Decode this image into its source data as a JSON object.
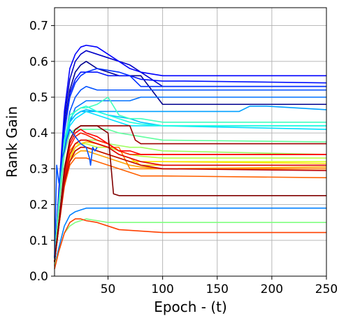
{
  "chart_data": {
    "type": "line",
    "title": "",
    "xlabel": "Epoch - (t)",
    "ylabel": "Rank Gain",
    "xlim": [
      1,
      250
    ],
    "ylim": [
      0.0,
      0.75
    ],
    "xticks": [
      50,
      100,
      150,
      200,
      250
    ],
    "yticks": [
      0.0,
      0.1,
      0.2,
      0.3,
      0.4,
      0.5,
      0.6,
      0.7
    ],
    "xtick_labels": [
      "50",
      "100",
      "150",
      "200",
      "250"
    ],
    "ytick_labels": [
      "0.0",
      "0.1",
      "0.2",
      "0.3",
      "0.4",
      "0.5",
      "0.6",
      "0.7"
    ],
    "grid": true,
    "legend": "none",
    "colormap": "jet",
    "series": [
      {
        "color": "#00008f",
        "x": [
          1,
          5,
          10,
          15,
          20,
          25,
          30,
          40,
          50,
          60,
          70,
          80,
          100,
          250
        ],
        "y": [
          0.05,
          0.22,
          0.42,
          0.52,
          0.57,
          0.59,
          0.6,
          0.58,
          0.57,
          0.56,
          0.56,
          0.56,
          0.48,
          0.48
        ]
      },
      {
        "color": "#0000c8",
        "x": [
          1,
          5,
          10,
          15,
          20,
          25,
          30,
          40,
          50,
          60,
          70,
          80,
          100,
          250
        ],
        "y": [
          0.05,
          0.23,
          0.44,
          0.55,
          0.6,
          0.62,
          0.63,
          0.62,
          0.61,
          0.6,
          0.59,
          0.57,
          0.53,
          0.53
        ]
      },
      {
        "color": "#0000ff",
        "x": [
          1,
          5,
          10,
          15,
          20,
          25,
          30,
          40,
          50,
          60,
          70,
          80,
          100,
          250
        ],
        "y": [
          0.05,
          0.24,
          0.46,
          0.58,
          0.62,
          0.64,
          0.645,
          0.64,
          0.62,
          0.6,
          0.58,
          0.57,
          0.56,
          0.56
        ]
      },
      {
        "color": "#0010ff",
        "x": [
          1,
          5,
          10,
          15,
          20,
          25,
          30,
          40,
          50,
          60,
          70,
          80,
          100,
          120,
          250
        ],
        "y": [
          0.05,
          0.22,
          0.41,
          0.51,
          0.55,
          0.57,
          0.57,
          0.57,
          0.56,
          0.56,
          0.56,
          0.55,
          0.545,
          0.545,
          0.54
        ]
      },
      {
        "color": "#0030ff",
        "x": [
          1,
          5,
          10,
          15,
          20,
          25,
          30,
          40,
          50,
          60,
          70,
          80,
          100,
          250
        ],
        "y": [
          0.05,
          0.21,
          0.4,
          0.5,
          0.54,
          0.56,
          0.57,
          0.58,
          0.575,
          0.57,
          0.56,
          0.53,
          0.53,
          0.53
        ]
      },
      {
        "color": "#0050ff",
        "x": [
          1,
          5,
          10,
          15,
          20,
          25,
          30,
          40,
          50,
          60,
          70,
          80,
          100,
          250
        ],
        "y": [
          0.05,
          0.2,
          0.37,
          0.46,
          0.5,
          0.52,
          0.53,
          0.52,
          0.52,
          0.52,
          0.52,
          0.52,
          0.52,
          0.52
        ]
      },
      {
        "color": "#0070ff",
        "x": [
          1,
          5,
          10,
          15,
          20,
          25,
          30,
          40,
          50,
          60,
          70,
          80,
          100,
          250
        ],
        "y": [
          0.05,
          0.19,
          0.35,
          0.43,
          0.47,
          0.48,
          0.49,
          0.49,
          0.49,
          0.49,
          0.49,
          0.5,
          0.5,
          0.5
        ]
      },
      {
        "color": "#0080ff",
        "x": [
          1,
          5,
          10,
          15,
          20,
          25,
          30,
          40,
          50,
          60,
          100,
          250
        ],
        "y": [
          0.03,
          0.08,
          0.14,
          0.17,
          0.18,
          0.185,
          0.19,
          0.19,
          0.19,
          0.19,
          0.19,
          0.19
        ]
      },
      {
        "color": "#00a0ff",
        "x": [
          1,
          5,
          10,
          15,
          20,
          25,
          30,
          40,
          50,
          60,
          70,
          80,
          100,
          170,
          180,
          195,
          250
        ],
        "y": [
          0.05,
          0.2,
          0.37,
          0.43,
          0.45,
          0.46,
          0.46,
          0.46,
          0.46,
          0.46,
          0.46,
          0.46,
          0.46,
          0.46,
          0.475,
          0.475,
          0.465
        ]
      },
      {
        "color": "#00c0ff",
        "x": [
          1,
          5,
          10,
          15,
          20,
          25,
          30,
          40,
          50,
          60,
          70,
          80,
          100,
          250
        ],
        "y": [
          0.05,
          0.2,
          0.37,
          0.43,
          0.45,
          0.46,
          0.465,
          0.46,
          0.45,
          0.445,
          0.44,
          0.43,
          0.42,
          0.42
        ]
      },
      {
        "color": "#00e0ff",
        "x": [
          1,
          5,
          10,
          15,
          20,
          25,
          30,
          40,
          50,
          60,
          70,
          80,
          100,
          250
        ],
        "y": [
          0.05,
          0.2,
          0.36,
          0.42,
          0.44,
          0.45,
          0.46,
          0.45,
          0.44,
          0.43,
          0.42,
          0.42,
          0.42,
          0.41
        ]
      },
      {
        "color": "#20ffdf",
        "x": [
          1,
          5,
          10,
          15,
          20,
          25,
          30,
          40,
          50,
          60,
          70,
          80,
          100,
          250
        ],
        "y": [
          0.05,
          0.2,
          0.38,
          0.44,
          0.46,
          0.47,
          0.475,
          0.46,
          0.45,
          0.44,
          0.43,
          0.425,
          0.42,
          0.42
        ]
      },
      {
        "color": "#40ffbf",
        "x": [
          1,
          5,
          10,
          15,
          20,
          25,
          30,
          40,
          50,
          60,
          70,
          80,
          100,
          250
        ],
        "y": [
          0.05,
          0.21,
          0.38,
          0.45,
          0.46,
          0.47,
          0.47,
          0.48,
          0.5,
          0.45,
          0.44,
          0.44,
          0.43,
          0.43
        ]
      },
      {
        "color": "#60ff9f",
        "x": [
          1,
          5,
          10,
          15,
          20,
          25,
          30,
          40,
          50,
          60,
          70,
          80,
          100,
          250
        ],
        "y": [
          0.05,
          0.19,
          0.34,
          0.4,
          0.41,
          0.41,
          0.41,
          0.41,
          0.41,
          0.4,
          0.395,
          0.39,
          0.38,
          0.375
        ]
      },
      {
        "color": "#80ff80",
        "x": [
          1,
          5,
          10,
          15,
          20,
          25,
          30,
          40,
          50,
          60,
          100,
          250
        ],
        "y": [
          0.03,
          0.07,
          0.12,
          0.14,
          0.15,
          0.155,
          0.16,
          0.155,
          0.15,
          0.15,
          0.15,
          0.15
        ]
      },
      {
        "color": "#9fff60",
        "x": [
          1,
          5,
          10,
          15,
          20,
          25,
          30,
          40,
          50,
          60,
          70,
          80,
          100,
          250
        ],
        "y": [
          0.04,
          0.16,
          0.29,
          0.35,
          0.37,
          0.38,
          0.38,
          0.38,
          0.37,
          0.365,
          0.36,
          0.36,
          0.35,
          0.34
        ]
      },
      {
        "color": "#bfff40",
        "x": [
          1,
          5,
          10,
          15,
          20,
          25,
          30,
          40,
          50,
          60,
          70,
          80,
          100,
          250
        ],
        "y": [
          0.04,
          0.15,
          0.28,
          0.34,
          0.36,
          0.37,
          0.37,
          0.36,
          0.36,
          0.35,
          0.34,
          0.335,
          0.33,
          0.33
        ]
      },
      {
        "color": "#dfff20",
        "x": [
          1,
          5,
          10,
          15,
          20,
          25,
          30,
          40,
          50,
          60,
          70,
          80,
          100,
          250
        ],
        "y": [
          0.04,
          0.15,
          0.28,
          0.35,
          0.37,
          0.37,
          0.36,
          0.35,
          0.34,
          0.33,
          0.32,
          0.32,
          0.32,
          0.32
        ]
      },
      {
        "color": "#ffe000",
        "x": [
          1,
          5,
          10,
          15,
          20,
          25,
          30,
          40,
          50,
          60,
          70,
          80,
          100,
          250
        ],
        "y": [
          0.04,
          0.15,
          0.27,
          0.33,
          0.35,
          0.36,
          0.36,
          0.35,
          0.34,
          0.33,
          0.32,
          0.32,
          0.32,
          0.315
        ]
      },
      {
        "color": "#ffc000",
        "x": [
          1,
          5,
          10,
          15,
          20,
          25,
          30,
          40,
          50,
          60,
          70,
          80,
          100,
          250
        ],
        "y": [
          0.04,
          0.14,
          0.26,
          0.33,
          0.36,
          0.37,
          0.375,
          0.37,
          0.36,
          0.34,
          0.33,
          0.31,
          0.31,
          0.31
        ]
      },
      {
        "color": "#ffa000",
        "x": [
          1,
          5,
          10,
          15,
          20,
          25,
          30,
          40,
          50,
          60,
          70,
          80,
          100,
          250
        ],
        "y": [
          0.04,
          0.14,
          0.26,
          0.32,
          0.34,
          0.35,
          0.35,
          0.34,
          0.33,
          0.32,
          0.31,
          0.305,
          0.3,
          0.305
        ]
      },
      {
        "color": "#ff8000",
        "x": [
          1,
          5,
          10,
          15,
          20,
          25,
          30,
          40,
          50,
          60,
          65,
          70,
          80,
          100,
          250
        ],
        "y": [
          0.04,
          0.15,
          0.28,
          0.35,
          0.37,
          0.38,
          0.38,
          0.37,
          0.36,
          0.36,
          0.33,
          0.3,
          0.3,
          0.3,
          0.3
        ]
      },
      {
        "color": "#ff6000",
        "x": [
          1,
          5,
          10,
          15,
          20,
          25,
          30,
          40,
          50,
          60,
          70,
          80,
          100,
          250
        ],
        "y": [
          0.04,
          0.14,
          0.25,
          0.31,
          0.33,
          0.33,
          0.33,
          0.32,
          0.31,
          0.3,
          0.29,
          0.28,
          0.28,
          0.275
        ]
      },
      {
        "color": "#ff4000",
        "x": [
          1,
          5,
          10,
          15,
          20,
          25,
          30,
          40,
          50,
          60,
          100,
          250
        ],
        "y": [
          0.02,
          0.07,
          0.12,
          0.15,
          0.16,
          0.16,
          0.155,
          0.15,
          0.14,
          0.13,
          0.122,
          0.122
        ]
      },
      {
        "color": "#ff2000",
        "x": [
          1,
          5,
          10,
          15,
          20,
          25,
          30,
          40,
          50,
          60,
          70,
          80,
          100,
          250
        ],
        "y": [
          0.04,
          0.15,
          0.28,
          0.36,
          0.39,
          0.4,
          0.395,
          0.38,
          0.37,
          0.35,
          0.34,
          0.34,
          0.34,
          0.34
        ]
      },
      {
        "color": "#ff0000",
        "x": [
          1,
          5,
          10,
          15,
          20,
          25,
          30,
          40,
          50,
          60,
          70,
          80,
          100,
          250
        ],
        "y": [
          0.04,
          0.15,
          0.29,
          0.37,
          0.4,
          0.41,
          0.4,
          0.39,
          0.37,
          0.35,
          0.35,
          0.34,
          0.34,
          0.34
        ]
      },
      {
        "color": "#df0000",
        "x": [
          1,
          5,
          10,
          15,
          20,
          25,
          30,
          40,
          50,
          60,
          70,
          80,
          100,
          250
        ],
        "y": [
          0.04,
          0.14,
          0.27,
          0.34,
          0.37,
          0.38,
          0.38,
          0.37,
          0.36,
          0.34,
          0.33,
          0.32,
          0.31,
          0.31
        ]
      },
      {
        "color": "#bf0000",
        "x": [
          1,
          5,
          10,
          15,
          20,
          25,
          30,
          40,
          50,
          60,
          70,
          80,
          100,
          250
        ],
        "y": [
          0.04,
          0.14,
          0.26,
          0.32,
          0.35,
          0.36,
          0.36,
          0.35,
          0.34,
          0.33,
          0.32,
          0.31,
          0.3,
          0.295
        ]
      },
      {
        "color": "#9f0000",
        "x": [
          1,
          5,
          10,
          15,
          20,
          25,
          30,
          40,
          50,
          60,
          70,
          75,
          80,
          100,
          250
        ],
        "y": [
          0.04,
          0.15,
          0.29,
          0.38,
          0.41,
          0.42,
          0.42,
          0.42,
          0.42,
          0.42,
          0.42,
          0.38,
          0.37,
          0.37,
          0.37
        ]
      },
      {
        "color": "#800000",
        "x": [
          1,
          5,
          10,
          15,
          20,
          25,
          30,
          40,
          45,
          50,
          55,
          60,
          100,
          250
        ],
        "y": [
          0.04,
          0.15,
          0.3,
          0.38,
          0.41,
          0.42,
          0.42,
          0.42,
          0.41,
          0.4,
          0.23,
          0.225,
          0.225,
          0.225
        ]
      },
      {
        "color": "#0050ff",
        "x": [
          1,
          3,
          5,
          7,
          8,
          10,
          12,
          15,
          20,
          25,
          30,
          33,
          34,
          36,
          38,
          40
        ],
        "y": [
          0.05,
          0.31,
          0.26,
          0.3,
          0.33,
          0.35,
          0.38,
          0.41,
          0.39,
          0.37,
          0.36,
          0.33,
          0.31,
          0.36,
          0.35,
          0.36
        ]
      }
    ]
  }
}
